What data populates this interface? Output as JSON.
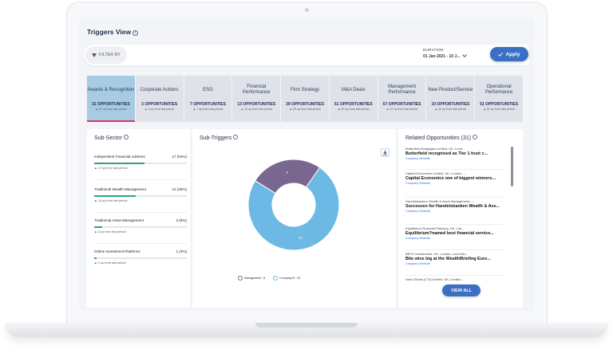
{
  "page": {
    "title": "Triggers View"
  },
  "filter": {
    "label": "FILTER BY",
    "duration_label": "DURATION",
    "duration_value": "01 Jan 2021 - 10 J...",
    "apply_label": "Apply"
  },
  "tabs": [
    {
      "name": "Awards & Recognition",
      "count": "31 OPPORTUNITIES",
      "change": "▲ 31 up from last period",
      "active": true
    },
    {
      "name": "Corporate Actions",
      "count": "3 OPPORTUNITIES",
      "change": "▲ 3 up from last period",
      "active": false
    },
    {
      "name": "ESG",
      "count": "7 OPPORTUNITIES",
      "change": "▲ 7 up from last period",
      "active": false
    },
    {
      "name": "Financial Performance",
      "count": "13 OPPORTUNITIES",
      "change": "▲ 13 up from last period",
      "active": false
    },
    {
      "name": "Firm Strategy",
      "count": "39 OPPORTUNITIES",
      "change": "▲ 39 up from last period",
      "active": false
    },
    {
      "name": "M&A Deals",
      "count": "51 OPPORTUNITIES",
      "change": "▲ 50 up from last period",
      "active": false
    },
    {
      "name": "Management Performance",
      "count": "57 OPPORTUNITIES",
      "change": "▲ 57 up from last period",
      "active": false
    },
    {
      "name": "New Product/Service",
      "count": "10 OPPORTUNITIES",
      "change": "▲ 10 up from last period",
      "active": false
    },
    {
      "name": "Operational Performance",
      "count": "51 OPPORTUNITIES",
      "change": "▲ 51 up from last period",
      "active": false
    }
  ],
  "subsector": {
    "title": "Sub-Sector",
    "items": [
      {
        "name": "Independent Financial Advisors",
        "value": "17 (54%)",
        "change": "▲ 17 up from last period",
        "fraction": 0.54
      },
      {
        "name": "Traditional Wealth Management",
        "value": "14 (45%)",
        "change": "▲ 14 up from last period",
        "fraction": 0.45
      },
      {
        "name": "Traditional Asset Management",
        "value": "3 (9%)",
        "change": "▲ 3 up from last period",
        "fraction": 0.09
      },
      {
        "name": "Online Investment Platforms",
        "value": "1 (3%)",
        "change": "▲ 1 up from last period",
        "fraction": 0.03
      }
    ]
  },
  "subtriggers": {
    "title": "Sub-Triggers",
    "colors": {
      "management": "#7a6790",
      "company": "#6db9e6"
    },
    "legend": [
      {
        "label": "Management - 8"
      },
      {
        "label": "Company B - 23"
      }
    ]
  },
  "chart_data": {
    "type": "pie",
    "donut": true,
    "categories": [
      "Management",
      "Company B"
    ],
    "values": [
      8,
      23
    ],
    "data_labels": [
      "8",
      "23"
    ]
  },
  "related": {
    "title": "Related Opportunities (31)",
    "items": [
      {
        "source": "Butterfield Mortgages Limited, UK, Lond...",
        "headline": "Butterfield recognised as Tier 1 trust c...",
        "link": "Company Website"
      },
      {
        "source": "Capital Economics Limited, UK, London, ...",
        "headline": "Capital Economics one of biggest winners...",
        "link": "Company Website"
      },
      {
        "source": "Handelsbanken Wealth & Asset Management, ...",
        "headline": "Successes for Handelsbanken Wealth & Ass...",
        "link": "Company Website"
      },
      {
        "source": "Equilibrium Financial Planning, UK, Lon...",
        "headline": "Equilibrium?named best financial service...",
        "link": "Company Website"
      },
      {
        "source": "BBTS Investments, UK, London, Lond Adv...",
        "headline": "Bite wins big at the WealthBriefing Euro...",
        "link": "Company Website"
      },
      {
        "source": "Saxo Global (CTI) Limited, UK, London, ...",
        "headline": "",
        "link": ""
      }
    ],
    "view_all": "VIEW ALL"
  }
}
